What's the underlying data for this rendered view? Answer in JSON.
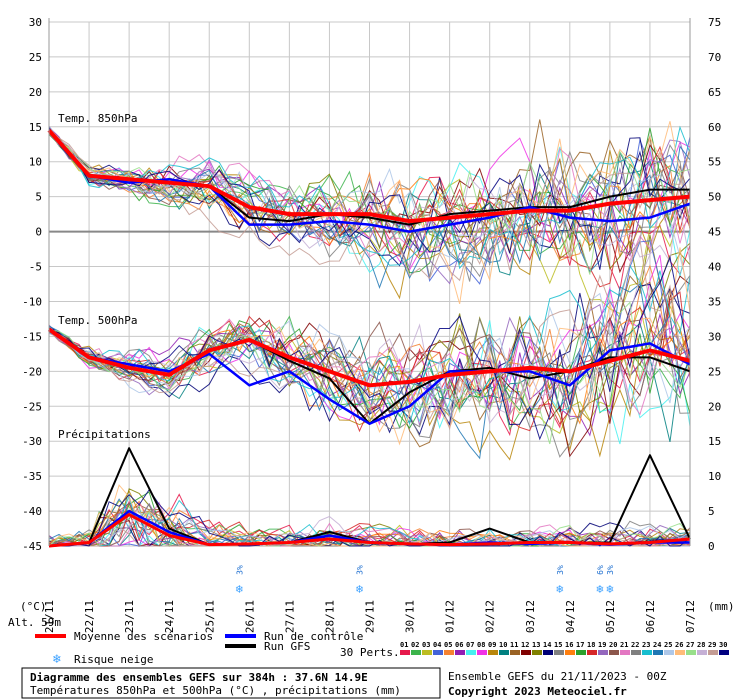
{
  "chart_data": {
    "type": "line",
    "title": "Diagramme des ensembles GEFS sur 384h : 37.6N 14.9E",
    "subtitle": "Températures 850hPa et 500hPa (°C) , précipitations (mm)",
    "run_info": "Ensemble GEFS du 21/11/2023 - 00Z",
    "copyright": "Copyright 2023 Meteociel.fr",
    "altitude": "Alt. 59m",
    "left_axis": {
      "unit": "(°C)",
      "ylim": [
        -45,
        30
      ],
      "ticks": [
        30,
        25,
        20,
        15,
        10,
        5,
        0,
        -5,
        -10,
        -15,
        -20,
        -25,
        -30,
        -35,
        -40,
        -45
      ]
    },
    "right_axis": {
      "unit": "(mm)",
      "ylim": [
        0,
        75
      ],
      "ticks": [
        75,
        70,
        65,
        60,
        55,
        50,
        45,
        40,
        35,
        30,
        25,
        20,
        15,
        10,
        5,
        0
      ]
    },
    "panel_labels": [
      "Temp. 850hPa",
      "Temp. 500hPa",
      "Précipitations"
    ],
    "x_dates": [
      "21/11",
      "22/11",
      "23/11",
      "24/11",
      "25/11",
      "26/11",
      "27/11",
      "28/11",
      "29/11",
      "30/11",
      "01/12",
      "02/12",
      "03/12",
      "04/12",
      "05/12",
      "06/12",
      "07/12"
    ],
    "snow_risk": [
      {
        "date": "25/11",
        "pct": "3%"
      },
      {
        "date": "28/11",
        "pct": "3%"
      },
      {
        "date": "03/12",
        "pct": "3%"
      },
      {
        "date": "04/12",
        "pct": "6%"
      },
      {
        "date": "04/12",
        "pct": "3%"
      }
    ],
    "legend": {
      "mean": "Moyenne des scénarios",
      "control": "Run de contrôle",
      "gfs": "Run GFS",
      "snow": "Risque neige",
      "perts": "30 Perts.",
      "member_ids": [
        "01",
        "02",
        "03",
        "04",
        "05",
        "06",
        "07",
        "08",
        "09",
        "10",
        "11",
        "12",
        "13",
        "14",
        "15",
        "16",
        "17",
        "18",
        "19",
        "20",
        "21",
        "22",
        "23",
        "24",
        "25",
        "26",
        "27",
        "28",
        "29",
        "30"
      ]
    },
    "colors": {
      "mean": "#ff0000",
      "control": "#0000ff",
      "gfs": "#000000",
      "members": [
        "#e6194b",
        "#3cb44b",
        "#bcbd22",
        "#4363d8",
        "#f58231",
        "#911eb4",
        "#46f0f0",
        "#f032e6",
        "#b8860b",
        "#008080",
        "#9a6324",
        "#800000",
        "#808000",
        "#000075",
        "#808080",
        "#ff7f0e",
        "#2ca02c",
        "#d62728",
        "#9467bd",
        "#8c564b",
        "#e377c2",
        "#7f7f7f",
        "#17becf",
        "#1f77b4",
        "#aec7e8",
        "#ffbb78",
        "#98df8a",
        "#c5b0d5",
        "#c49c94",
        "#000080"
      ]
    },
    "t850": {
      "mean": [
        14.5,
        8.0,
        7.5,
        7.0,
        6.5,
        3.5,
        2.5,
        2.5,
        2.5,
        1.5,
        2.0,
        2.5,
        3.0,
        3.0,
        4.0,
        4.5,
        5.0
      ],
      "control": [
        14.5,
        8.0,
        7.0,
        7.5,
        6.5,
        1.0,
        1.0,
        1.5,
        1.0,
        0.0,
        1.0,
        2.0,
        3.5,
        2.0,
        1.5,
        2.0,
        4.0
      ],
      "gfs": [
        14.5,
        8.0,
        7.5,
        7.0,
        6.5,
        2.0,
        1.5,
        2.5,
        2.0,
        1.0,
        2.5,
        3.0,
        3.5,
        3.5,
        5.0,
        6.0,
        6.0
      ]
    },
    "t500": {
      "mean": [
        -14.0,
        -18.0,
        -19.5,
        -20.5,
        -17.0,
        -15.5,
        -18.0,
        -20.0,
        -22.0,
        -21.5,
        -20.5,
        -20.0,
        -19.5,
        -20.0,
        -18.5,
        -17.0,
        -18.5
      ],
      "control": [
        -14.0,
        -18.0,
        -19.0,
        -20.0,
        -17.5,
        -22.0,
        -20.0,
        -24.0,
        -27.5,
        -25.0,
        -20.0,
        -20.0,
        -20.0,
        -22.0,
        -17.0,
        -16.0,
        -19.0
      ],
      "gfs": [
        -14.0,
        -18.0,
        -19.5,
        -20.5,
        -17.0,
        -15.5,
        -18.5,
        -21.0,
        -27.5,
        -23.0,
        -20.0,
        -19.5,
        -21.0,
        -20.0,
        -18.0,
        -18.0,
        -20.0
      ]
    },
    "precip": {
      "mean": [
        0,
        0.5,
        4.5,
        1.5,
        0.2,
        0.3,
        0.5,
        1.0,
        0.5,
        0.3,
        0.2,
        0.3,
        0.5,
        0.5,
        0.3,
        0.5,
        1.0
      ],
      "control": [
        0,
        0.5,
        5.0,
        2.0,
        0.2,
        0.3,
        0.5,
        1.5,
        0.5,
        0.3,
        0.2,
        0.5,
        0.3,
        0.5,
        0.2,
        0.5,
        0.5
      ],
      "gfs": [
        0,
        0.5,
        14.0,
        2.5,
        0.2,
        0.3,
        0.5,
        2.0,
        0.5,
        0.3,
        0.5,
        2.5,
        0.5,
        0.5,
        0.5,
        13.0,
        1.0
      ]
    }
  }
}
